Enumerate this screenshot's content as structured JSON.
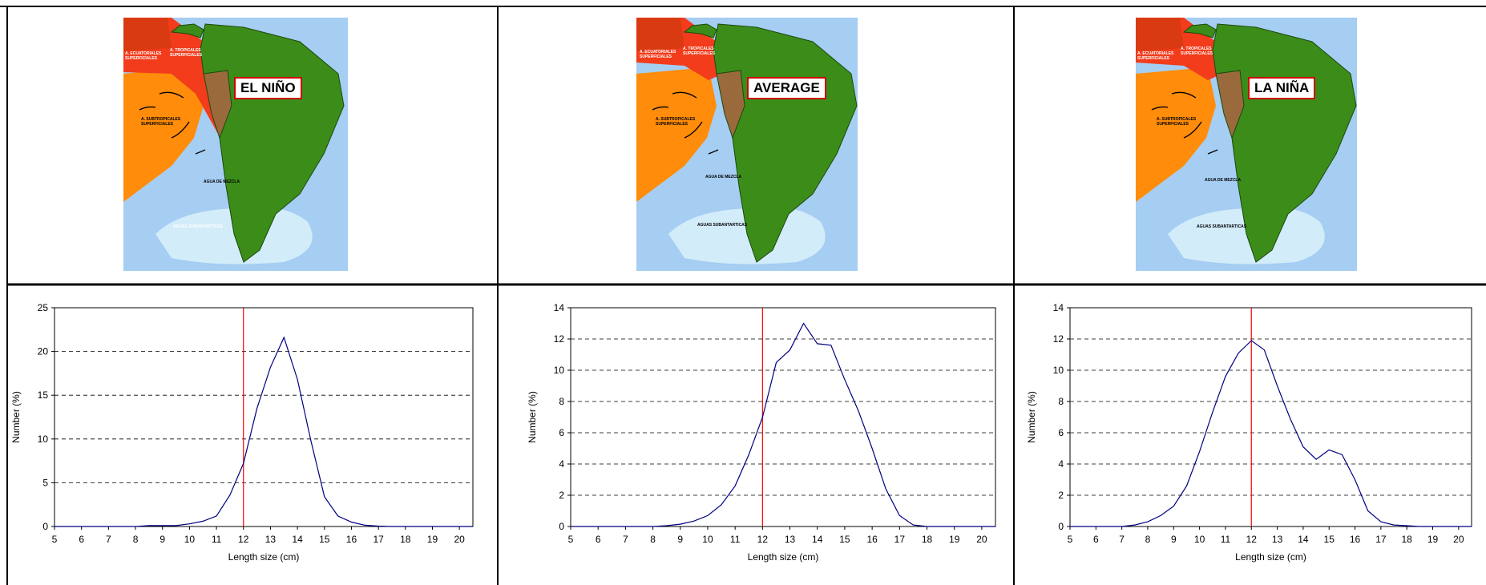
{
  "panels": [
    {
      "map_title": "EL NIÑO",
      "map_labels": {
        "equatorial": [
          "A. ECUATORIALES",
          "SUPERFICIALES"
        ],
        "tropical": [
          "A. TROPICALES",
          "SUPERFICIALES"
        ],
        "subtropical": [
          "A. SUBTROPICALES",
          "SUPERFICIALES"
        ],
        "mezcla": "AGUA DE MEZCLA",
        "subantartica": "AGUAS SUBANTARTICAS"
      }
    },
    {
      "map_title": "AVERAGE",
      "map_labels": {
        "equatorial": [
          "A. ECUATORIALES",
          "SUPERFICIALES"
        ],
        "tropical": [
          "A. TROPICALES",
          "SUPERFICIALES"
        ],
        "subtropical": [
          "A. SUBTROPICALES",
          "SUPERFICIALES"
        ],
        "mezcla": "AGUA DE MEZCLA",
        "subantartica": "AGUAS SUBANTARTICAS"
      }
    },
    {
      "map_title": "LA NIÑA",
      "map_labels": {
        "equatorial": [
          "A. ECUATORIALES",
          "SUPERFICIALES"
        ],
        "tropical": [
          "A. TROPICALES",
          "SUPERFICIALES"
        ],
        "subtropical": [
          "A. SUBTROPICALES",
          "SUPERFICIALES"
        ],
        "mezcla": "AGUA DE MEZCLA",
        "subantartica": "AGUAS SUBANTARTICAS"
      }
    }
  ],
  "colors": {
    "ocean": "#a6cdf2",
    "light_ocean": "#d2ecfa",
    "equatorial": "#d93a12",
    "tropical": "#f23c1c",
    "subtropical": "#ff8c0a",
    "land": "#3c8c1a",
    "peru": "#9a6a3c",
    "series": "#000080",
    "threshold": "#ff0000",
    "grid": "#000000"
  },
  "chart_data": [
    {
      "type": "line",
      "xlabel": "Length size (cm)",
      "ylabel": "Number (%)",
      "xlim": [
        5,
        20.5
      ],
      "ylim": [
        0,
        25
      ],
      "xticks": [
        5,
        6,
        7,
        8,
        9,
        10,
        11,
        12,
        13,
        14,
        15,
        16,
        17,
        18,
        19,
        20
      ],
      "yticks": [
        0,
        5,
        10,
        15,
        20,
        25
      ],
      "grid": "horizontal dashed",
      "threshold_x": 12,
      "x": [
        5,
        5.5,
        6,
        6.5,
        7,
        7.5,
        8,
        8.5,
        9,
        9.5,
        10,
        10.5,
        11,
        11.5,
        12,
        12.5,
        13,
        13.5,
        14,
        14.5,
        15,
        15.5,
        16,
        16.5,
        17,
        17.5,
        18,
        18.5,
        19,
        19.5,
        20,
        20.5
      ],
      "y": [
        0,
        0,
        0,
        0,
        0,
        0,
        0,
        0.1,
        0.1,
        0.1,
        0.3,
        0.6,
        1.2,
        3.6,
        7.2,
        13.5,
        18.2,
        21.6,
        16.8,
        9.8,
        3.4,
        1.2,
        0.5,
        0.15,
        0.05,
        0,
        0,
        0,
        0,
        0,
        0,
        0
      ]
    },
    {
      "type": "line",
      "xlabel": "Length size (cm)",
      "ylabel": "Number (%)",
      "xlim": [
        5,
        20.5
      ],
      "ylim": [
        0,
        14
      ],
      "xticks": [
        5,
        6,
        7,
        8,
        9,
        10,
        11,
        12,
        13,
        14,
        15,
        16,
        17,
        18,
        19,
        20
      ],
      "yticks": [
        0,
        2,
        4,
        6,
        8,
        10,
        12,
        14
      ],
      "grid": "horizontal dashed",
      "threshold_x": 12,
      "x": [
        5,
        5.5,
        6,
        6.5,
        7,
        7.5,
        8,
        8.5,
        9,
        9.5,
        10,
        10.5,
        11,
        11.5,
        12,
        12.5,
        13,
        13.5,
        14,
        14.5,
        15,
        15.5,
        16,
        16.5,
        17,
        17.5,
        18,
        18.5,
        19,
        19.5,
        20,
        20.5
      ],
      "y": [
        0,
        0,
        0,
        0,
        0,
        0,
        0,
        0.05,
        0.15,
        0.35,
        0.7,
        1.4,
        2.6,
        4.6,
        7.0,
        10.5,
        11.3,
        13.0,
        11.7,
        11.6,
        9.4,
        7.4,
        5.0,
        2.4,
        0.7,
        0.1,
        0,
        0,
        0,
        0,
        0,
        0
      ]
    },
    {
      "type": "line",
      "xlabel": "Length size (cm)",
      "ylabel": "Number (%)",
      "xlim": [
        5,
        20.5
      ],
      "ylim": [
        0,
        14
      ],
      "xticks": [
        5,
        6,
        7,
        8,
        9,
        10,
        11,
        12,
        13,
        14,
        15,
        16,
        17,
        18,
        19,
        20
      ],
      "yticks": [
        0,
        2,
        4,
        6,
        8,
        10,
        12,
        14
      ],
      "grid": "horizontal dashed",
      "threshold_x": 12,
      "x": [
        5,
        5.5,
        6,
        6.5,
        7,
        7.5,
        8,
        8.5,
        9,
        9.5,
        10,
        10.5,
        11,
        11.5,
        12,
        12.5,
        13,
        13.5,
        14,
        14.5,
        15,
        15.5,
        16,
        16.5,
        17,
        17.5,
        18,
        18.5,
        19,
        19.5,
        20,
        20.5
      ],
      "y": [
        0,
        0,
        0,
        0,
        0,
        0.1,
        0.3,
        0.7,
        1.3,
        2.6,
        4.8,
        7.3,
        9.6,
        11.1,
        11.9,
        11.3,
        9.0,
        6.9,
        5.1,
        4.3,
        4.9,
        4.6,
        3.0,
        1.0,
        0.3,
        0.1,
        0.05,
        0,
        0,
        0,
        0,
        0
      ]
    }
  ]
}
